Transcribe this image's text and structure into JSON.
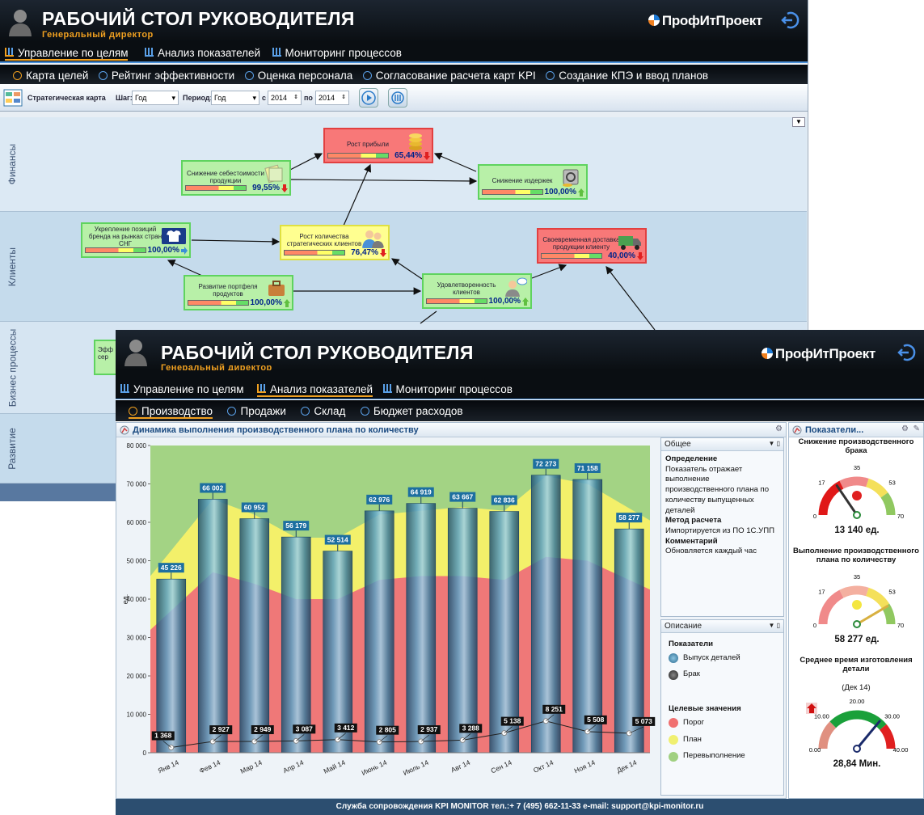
{
  "header": {
    "title": "РАБОЧИЙ СТОЛ РУКОВОДИТЕЛЯ",
    "subtitle": "Генеральный директор",
    "logo": "ПрофИтПроект"
  },
  "nav_main": [
    "Управление по целям",
    "Анализ показателей",
    "Мониторинг процессов"
  ],
  "back": {
    "nav_sub": [
      "Карта целей",
      "Рейтинг эффективности",
      "Оценка персонала",
      "Согласование расчета карт KPI",
      "Создание КПЭ и ввод планов"
    ],
    "toolbar": {
      "title": "Стратегическая карта",
      "step_label": "Шаг:",
      "step_value": "Год",
      "period_label": "Период:",
      "period_value": "Год",
      "from_label": "с",
      "from_value": "2014",
      "to_label": "по",
      "to_value": "2014"
    },
    "lanes": [
      "Финансы",
      "Клиенты",
      "Бизнес процессы",
      "Развитие"
    ],
    "kpis": [
      {
        "name": "Рост прибыли",
        "value": "65,44%",
        "status": "red"
      },
      {
        "name": "Снижение себестоимости продукции",
        "value": "99,55%",
        "status": "green"
      },
      {
        "name": "Снижение издержек",
        "value": "100,00%",
        "status": "green"
      },
      {
        "name": "Укрепление позиций бренда на рынках стран СНГ",
        "value": "100,00%",
        "status": "green"
      },
      {
        "name": "Рост количества стратегических клиентов",
        "value": "76,47%",
        "status": "yellow"
      },
      {
        "name": "Своевременная доставка продукции клиенту",
        "value": "40,00%",
        "status": "red"
      },
      {
        "name": "Развитие портфеля продуктов",
        "value": "100,00%",
        "status": "green"
      },
      {
        "name": "Удовлетворенность клиентов",
        "value": "100,00%",
        "status": "green"
      },
      {
        "name": "Эфф сер",
        "value": "",
        "status": "green"
      }
    ]
  },
  "front": {
    "nav_sub": [
      "Производство",
      "Продажи",
      "Склад",
      "Бюджет расходов"
    ],
    "chart_panel_title": "Динамика выполнения производственного плана по количеству",
    "general": {
      "header": "Общее",
      "definition_title": "Определение",
      "definition": "Показатель отражает выполнение производственного плана по количеству выпущенных деталей",
      "method_title": "Метод расчета",
      "method": "Импортируется из ПО 1С.УПП",
      "comment_title": "Комментарий",
      "comment": "Обновляется каждый час"
    },
    "description": {
      "header": "Описание",
      "indicators_title": "Показатели",
      "indicators": [
        {
          "label": "Выпуск деталей",
          "color": "#3a87b0"
        },
        {
          "label": "Брак",
          "color": "#333333"
        }
      ],
      "targets_title": "Целевые значения",
      "targets": [
        {
          "label": "Порог",
          "color": "#f07070"
        },
        {
          "label": "План",
          "color": "#f0f070"
        },
        {
          "label": "Перевыполнение",
          "color": "#a0d080"
        }
      ]
    },
    "gauges_panel_title": "Показатели...",
    "gauges": [
      {
        "title": "Снижение производственного брака",
        "min": "0",
        "t1": "17",
        "t2": "35",
        "t3": "53",
        "max": "70",
        "value": 13140,
        "value_text": "13 140 ед.",
        "needle": 0.31,
        "light": "#e02020"
      },
      {
        "title": "Выполнение производственного плана по количеству",
        "min": "0",
        "t1": "17",
        "t2": "35",
        "t3": "53",
        "max": "70",
        "value": 58277,
        "value_text": "58 277 ед.",
        "needle": 0.83,
        "light": "#f4e640"
      },
      {
        "title": "Среднее время изготовления детали",
        "period": "(Дек 14)",
        "min": "0.00",
        "t1": "10.00",
        "t2": "20.00",
        "t3": "30.00",
        "max": "40.00",
        "value": 28.84,
        "value_text": "28,84 Мин.",
        "needle": 0.72,
        "light": ""
      }
    ],
    "footer": "Служба сопровождения KPI MONITOR тел.:+ 7 (495) 662-11-33 e-mail: support@kpi-monitor.ru"
  },
  "chart_data": {
    "type": "bar",
    "ylabel": "ед.",
    "ylim": [
      0,
      80000
    ],
    "yticks": [
      "0",
      "10 000",
      "20 000",
      "30 000",
      "40 000",
      "50 000",
      "60 000",
      "70 000",
      "80 000"
    ],
    "categories": [
      "Янв 14",
      "Фев 14",
      "Мар 14",
      "Апр 14",
      "Май 14",
      "Июнь 14",
      "Июль 14",
      "Авг 14",
      "Сен 14",
      "Окт 14",
      "Ноя 14",
      "Дек 14"
    ],
    "series": [
      {
        "name": "Выпуск деталей",
        "type": "bar",
        "values": [
          45226,
          66002,
          60952,
          56179,
          52514,
          62976,
          64919,
          63667,
          62836,
          72273,
          71158,
          58277
        ],
        "labels": [
          "45 226",
          "66 002",
          "60 952",
          "56 179",
          "52 514",
          "62 976",
          "64 919",
          "63 667",
          "62 836",
          "72 273",
          "71 158",
          "58 277"
        ]
      },
      {
        "name": "Брак",
        "type": "line",
        "values": [
          1368,
          2927,
          2949,
          3087,
          3412,
          2805,
          2937,
          3288,
          5138,
          8251,
          5508,
          5073
        ],
        "labels": [
          "1 368",
          "2 927",
          "2 949",
          "3 087",
          "3 412",
          "2 805",
          "2 937",
          "3 288",
          "5 138",
          "8 251",
          "5 508",
          "5 073"
        ]
      },
      {
        "name": "Порог",
        "type": "area",
        "values": [
          32000,
          47000,
          44000,
          40000,
          40000,
          45000,
          46000,
          46000,
          45000,
          51000,
          50000,
          42500
        ]
      },
      {
        "name": "План",
        "type": "area",
        "values": [
          46000,
          66000,
          62000,
          56000,
          56000,
          62000,
          63000,
          64000,
          63000,
          72000,
          70000,
          60500
        ]
      },
      {
        "name": "Перевыполнение",
        "type": "area",
        "values": [
          80000,
          80000,
          80000,
          80000,
          80000,
          80000,
          80000,
          80000,
          80000,
          80000,
          80000,
          80000
        ]
      }
    ]
  }
}
